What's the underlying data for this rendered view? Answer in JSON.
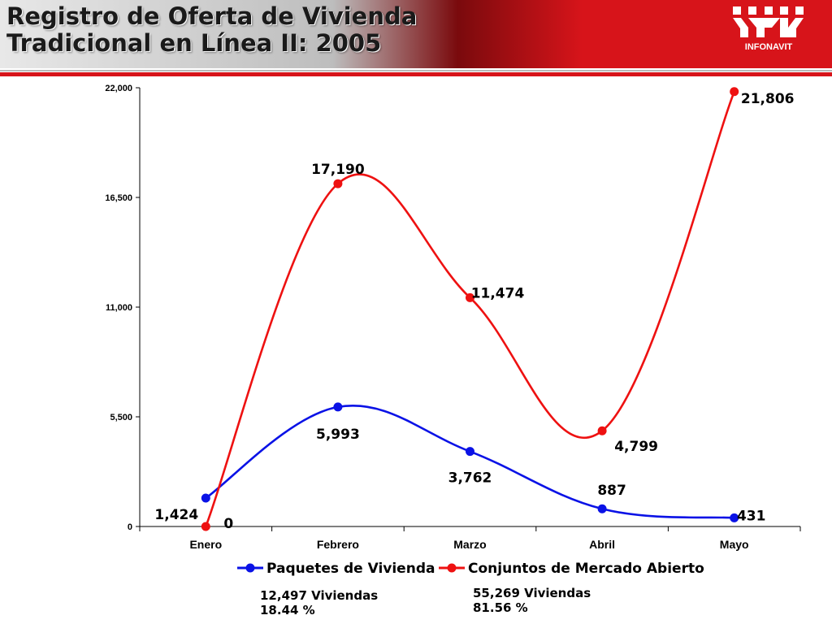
{
  "header": {
    "title_line1": "Registro de Oferta de Vivienda",
    "title_line2": "Tradicional en Línea II: 2005",
    "logo_text": "INFONAVIT",
    "colors": {
      "banner_red": "#d7141a",
      "banner_dark": "#8c0c10"
    }
  },
  "chart_data": {
    "type": "line",
    "categories": [
      "Enero",
      "Febrero",
      "Marzo",
      "Abril",
      "Mayo"
    ],
    "series": [
      {
        "name": "Paquetes de Vivienda",
        "values": [
          1424,
          5993,
          3762,
          887,
          431
        ],
        "color": "#0a12e6",
        "labels": [
          "1,424",
          "5,993",
          "3,762",
          "887",
          "431"
        ]
      },
      {
        "name": "Conjuntos de Mercado Abierto",
        "values": [
          0,
          17190,
          11474,
          4799,
          21806
        ],
        "color": "#ee1111",
        "labels": [
          "0",
          "17,190",
          "11,474",
          "4,799",
          "21,806"
        ]
      }
    ],
    "ylim": [
      0,
      22000
    ],
    "yticks": [
      0,
      5500,
      11000,
      16500,
      22000
    ],
    "ytick_labels": [
      "0",
      "5,500",
      "11,000",
      "16,500",
      "22,000"
    ],
    "smooth": true,
    "grid": false,
    "legend": "bottom"
  },
  "summary": {
    "paquetes": {
      "line1": "12,497 Viviendas",
      "line2": "18.44 %"
    },
    "conjuntos": {
      "line1": "55,269 Viviendas",
      "line2": "81.56 %"
    }
  }
}
